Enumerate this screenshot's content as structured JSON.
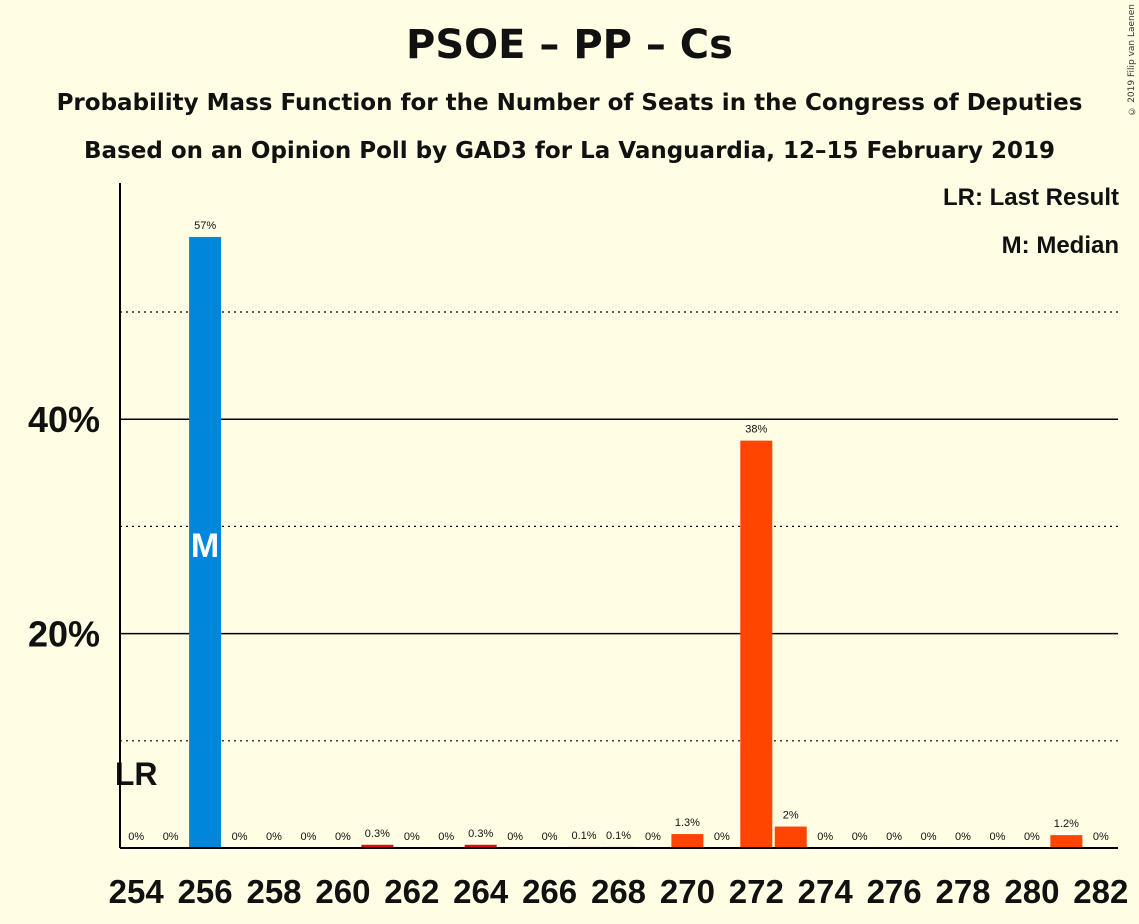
{
  "title": "PSOE – PP – Cs",
  "subtitle1": "Probability Mass Function for the Number of Seats in the Congress of Deputies",
  "subtitle2": "Based on an Opinion Poll by GAD3 for La Vanguardia, 12–15 February 2019",
  "copyright": "© 2019 Filip van Laenen",
  "legend": {
    "last_result": "LR: Last Result",
    "median": "M: Median"
  },
  "colors": {
    "background": "#FFFDE3",
    "median_bar": "#0087DC",
    "bar": "#FF4500",
    "bar_low": "#E30613"
  },
  "chart_data": {
    "type": "bar",
    "xlim": [
      254,
      282
    ],
    "x_ticks": [
      "254",
      "256",
      "258",
      "260",
      "262",
      "264",
      "266",
      "268",
      "270",
      "272",
      "274",
      "276",
      "278",
      "280",
      "282"
    ],
    "y_ticks": [
      "20%",
      "40%"
    ],
    "ylim": [
      0,
      62
    ],
    "dotted_gridlines": [
      10,
      30,
      50
    ],
    "solid_gridlines": [
      20,
      40
    ],
    "x": [
      254,
      255,
      256,
      257,
      258,
      259,
      260,
      261,
      262,
      263,
      264,
      265,
      266,
      267,
      268,
      269,
      270,
      271,
      272,
      273,
      274,
      275,
      276,
      277,
      278,
      279,
      280,
      281,
      282
    ],
    "values": [
      0,
      0,
      57,
      0,
      0,
      0,
      0,
      0.3,
      0,
      0,
      0.3,
      0,
      0,
      0.1,
      0.1,
      0,
      1.3,
      0,
      38,
      2,
      0,
      0,
      0,
      0,
      0,
      0,
      0,
      1.2,
      0
    ],
    "labels": [
      "0%",
      "0%",
      "57%",
      "0%",
      "0%",
      "0%",
      "0%",
      "0.3%",
      "0%",
      "0%",
      "0.3%",
      "0%",
      "0%",
      "0.1%",
      "0.1%",
      "0%",
      "1.3%",
      "0%",
      "38%",
      "2%",
      "0%",
      "0%",
      "0%",
      "0%",
      "0%",
      "0%",
      "0%",
      "1.2%",
      "0%"
    ],
    "median_x": 256,
    "median_label": "M",
    "last_result_x": 254,
    "last_result_label": "LR"
  }
}
